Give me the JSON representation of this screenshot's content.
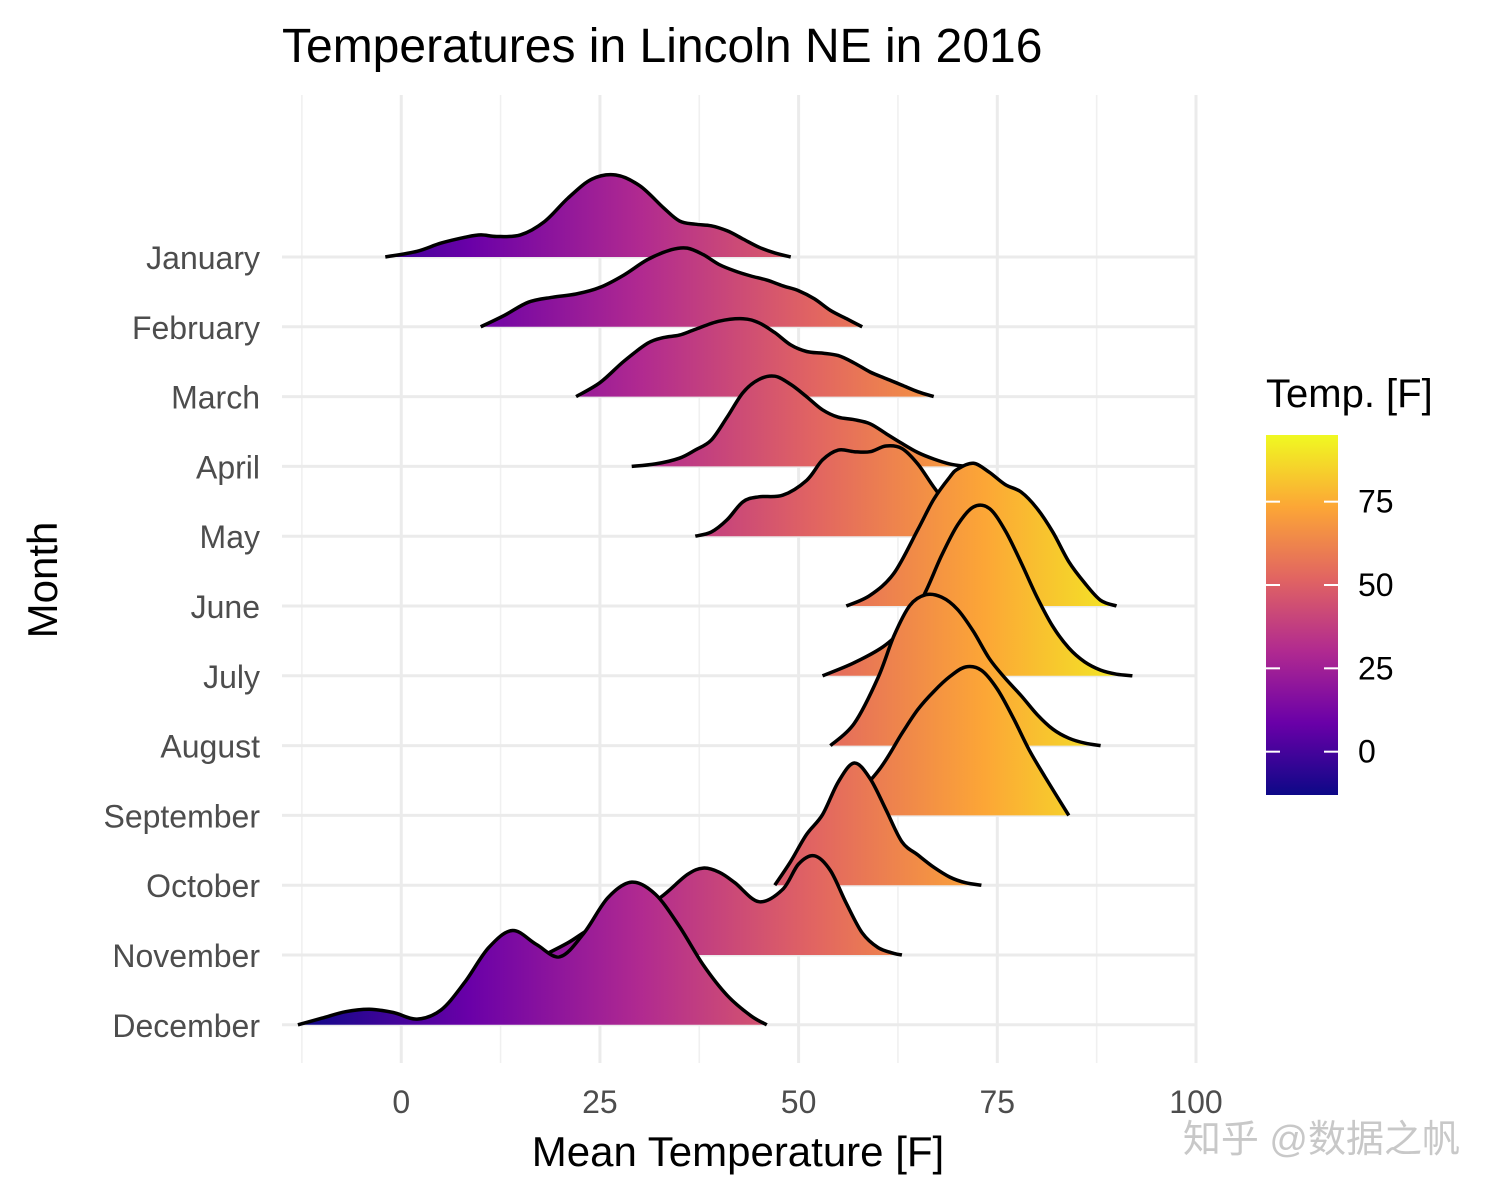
{
  "chart_data": {
    "type": "ridgeline",
    "title": "Temperatures in Lincoln NE in 2016",
    "xlabel": "Mean Temperature [F]",
    "ylabel": "Month",
    "xlim": [
      -15,
      100
    ],
    "x_ticks": [
      0,
      25,
      50,
      75,
      100
    ],
    "grid": true,
    "color_scale": {
      "name": "plasma",
      "title": "Temp. [F]",
      "range": [
        -13,
        95
      ],
      "ticks": [
        0,
        25,
        50,
        75
      ],
      "colors": [
        "#0d0887",
        "#6a00a8",
        "#b12a90",
        "#e16462",
        "#fca636",
        "#f0f921"
      ]
    },
    "series": [
      {
        "name": "January",
        "x": [
          -2,
          2,
          5,
          8,
          10,
          12,
          15,
          18,
          21,
          24,
          27,
          30,
          33,
          35,
          37,
          39,
          41,
          43,
          45,
          47,
          49
        ],
        "density": [
          0,
          0.07,
          0.17,
          0.24,
          0.27,
          0.25,
          0.27,
          0.43,
          0.72,
          0.95,
          1.0,
          0.87,
          0.6,
          0.44,
          0.4,
          0.38,
          0.32,
          0.22,
          0.12,
          0.05,
          0
        ]
      },
      {
        "name": "February",
        "x": [
          10,
          13,
          16,
          19,
          22,
          25,
          28,
          31,
          34,
          36,
          38,
          40,
          42,
          44,
          46,
          48,
          50,
          52,
          54,
          56,
          58
        ],
        "density": [
          0,
          0.14,
          0.3,
          0.36,
          0.4,
          0.48,
          0.63,
          0.82,
          0.94,
          0.96,
          0.88,
          0.76,
          0.68,
          0.62,
          0.57,
          0.5,
          0.44,
          0.34,
          0.2,
          0.1,
          0
        ]
      },
      {
        "name": "March",
        "x": [
          22,
          25,
          28,
          31,
          33,
          35,
          37,
          40,
          43,
          45,
          47,
          49,
          51,
          53,
          55,
          57,
          59,
          61,
          63,
          65,
          67
        ],
        "density": [
          0,
          0.17,
          0.43,
          0.65,
          0.72,
          0.75,
          0.82,
          0.92,
          0.95,
          0.9,
          0.78,
          0.63,
          0.55,
          0.53,
          0.5,
          0.41,
          0.3,
          0.22,
          0.14,
          0.06,
          0
        ]
      },
      {
        "name": "April",
        "x": [
          29,
          32,
          35,
          37,
          39,
          41,
          43,
          45,
          47,
          49,
          51,
          53,
          55,
          57,
          59,
          61,
          63,
          65,
          67,
          69,
          71
        ],
        "density": [
          0,
          0.03,
          0.1,
          0.2,
          0.32,
          0.6,
          0.9,
          1.06,
          1.1,
          1.0,
          0.85,
          0.69,
          0.6,
          0.57,
          0.52,
          0.4,
          0.28,
          0.17,
          0.09,
          0.03,
          0
        ]
      },
      {
        "name": "May",
        "x": [
          37,
          39,
          41,
          43,
          45,
          48,
          51,
          53,
          55,
          57,
          59,
          61,
          63,
          65,
          67,
          69,
          71,
          73,
          75,
          77,
          79
        ],
        "density": [
          0,
          0.05,
          0.2,
          0.42,
          0.48,
          0.5,
          0.68,
          0.93,
          1.05,
          1.03,
          1.03,
          1.1,
          1.07,
          0.88,
          0.6,
          0.35,
          0.18,
          0.08,
          0.03,
          0.01,
          0
        ]
      },
      {
        "name": "June",
        "x": [
          56,
          59,
          62,
          65,
          67,
          69,
          70,
          72,
          74,
          76,
          78,
          80,
          82,
          84,
          86,
          88,
          90
        ],
        "density": [
          0,
          0.13,
          0.4,
          0.93,
          1.3,
          1.57,
          1.67,
          1.74,
          1.63,
          1.48,
          1.39,
          1.19,
          0.9,
          0.54,
          0.28,
          0.07,
          0
        ]
      },
      {
        "name": "July",
        "x": [
          53,
          57,
          61,
          64,
          66,
          68,
          70,
          72,
          74,
          76,
          78,
          80,
          82,
          84,
          86,
          88,
          90,
          92
        ],
        "density": [
          0,
          0.16,
          0.38,
          0.68,
          1.03,
          1.47,
          1.84,
          2.06,
          2.04,
          1.77,
          1.38,
          0.96,
          0.6,
          0.34,
          0.17,
          0.07,
          0.02,
          0
        ]
      },
      {
        "name": "August",
        "x": [
          54,
          57,
          60,
          62,
          64,
          66,
          68,
          70,
          72,
          74,
          76,
          78,
          80,
          82,
          84,
          86,
          88
        ],
        "density": [
          0,
          0.27,
          0.83,
          1.34,
          1.71,
          1.84,
          1.81,
          1.66,
          1.39,
          1.06,
          0.82,
          0.61,
          0.38,
          0.2,
          0.09,
          0.03,
          0
        ]
      },
      {
        "name": "September",
        "x": [
          55,
          60,
          63,
          65,
          67,
          69,
          71,
          73,
          75,
          77,
          79,
          81,
          84
        ],
        "density": [
          0,
          0.54,
          1.0,
          1.29,
          1.51,
          1.69,
          1.81,
          1.77,
          1.54,
          1.19,
          0.8,
          0.47,
          0
        ]
      },
      {
        "name": "October",
        "x": [
          47,
          49,
          51,
          53,
          55,
          57,
          59,
          61,
          63,
          65,
          67,
          69,
          71,
          73
        ],
        "density": [
          0,
          0.29,
          0.62,
          0.86,
          1.26,
          1.49,
          1.3,
          0.92,
          0.53,
          0.37,
          0.22,
          0.1,
          0.03,
          0
        ]
      },
      {
        "name": "November",
        "x": [
          18,
          21,
          24,
          27,
          30,
          33,
          36,
          38,
          40,
          42,
          45,
          48,
          50,
          52,
          54,
          56,
          58,
          60,
          62,
          63
        ],
        "density": [
          0,
          0.15,
          0.33,
          0.42,
          0.53,
          0.73,
          0.98,
          1.06,
          1.01,
          0.88,
          0.65,
          0.8,
          1.11,
          1.21,
          1.03,
          0.63,
          0.27,
          0.09,
          0.02,
          0
        ]
      },
      {
        "name": "December",
        "x": [
          -13,
          -10,
          -7,
          -4,
          -1,
          2,
          5,
          8,
          11,
          14,
          17,
          20,
          23,
          26,
          29,
          32,
          35,
          38,
          41,
          44,
          46
        ],
        "density": [
          0,
          0.08,
          0.16,
          0.19,
          0.15,
          0.07,
          0.18,
          0.52,
          0.94,
          1.15,
          0.98,
          0.83,
          1.12,
          1.55,
          1.74,
          1.59,
          1.2,
          0.73,
          0.36,
          0.11,
          0
        ]
      }
    ]
  },
  "watermark": "知乎 @数据之帆"
}
